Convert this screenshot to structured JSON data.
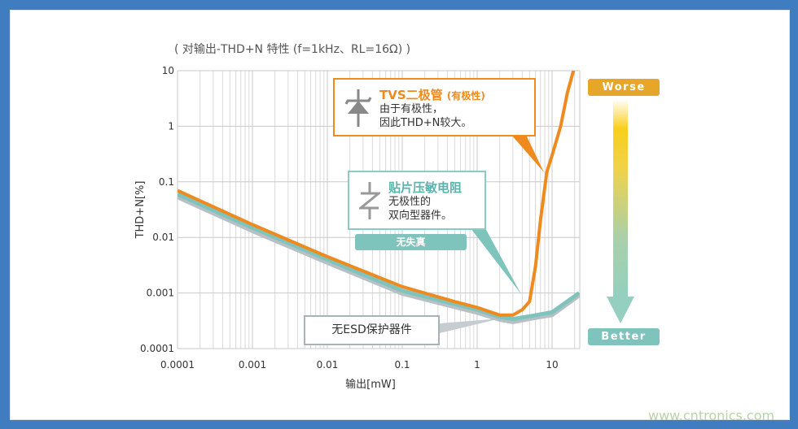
{
  "chart_data": {
    "type": "line",
    "title": "( 对输出-THD+N 特性 (f=1kHz、RL=16Ω) )",
    "xlabel": "输出[mW]",
    "ylabel": "THD+N[%]",
    "xscale": "log",
    "yscale": "log",
    "xlim": [
      0.0001,
      23
    ],
    "ylim": [
      0.0001,
      10
    ],
    "grid": true,
    "xticks": [
      "0.0001",
      "0.001",
      "0.01",
      "0.1",
      "1",
      "10"
    ],
    "yticks": [
      "10",
      "1",
      "0.1",
      "0.01",
      "0.001",
      "0.0001"
    ],
    "series": [
      {
        "name": "无ESD保护器件",
        "color": "#b8c0c6",
        "points": [
          [
            0.0001,
            0.053
          ],
          [
            0.001,
            0.013
          ],
          [
            0.01,
            0.0035
          ],
          [
            0.1,
            0.00097
          ],
          [
            1,
            0.00044
          ],
          [
            2,
            0.00033
          ],
          [
            3,
            0.0003
          ],
          [
            5,
            0.00034
          ],
          [
            10,
            0.0004
          ],
          [
            23,
            0.0009
          ]
        ]
      },
      {
        "name": "贴片压敏电阻",
        "color": "#7ec4bd",
        "points": [
          [
            0.0001,
            0.06
          ],
          [
            0.001,
            0.015
          ],
          [
            0.01,
            0.004
          ],
          [
            0.1,
            0.0011
          ],
          [
            1,
            0.0005
          ],
          [
            2,
            0.00037
          ],
          [
            3,
            0.00034
          ],
          [
            5,
            0.00038
          ],
          [
            10,
            0.00045
          ],
          [
            23,
            0.001
          ]
        ]
      },
      {
        "name": "TVS二极管",
        "color": "#ee8a1e",
        "points": [
          [
            0.0001,
            0.07
          ],
          [
            0.001,
            0.017
          ],
          [
            0.01,
            0.0045
          ],
          [
            0.1,
            0.0013
          ],
          [
            0.5,
            0.0007
          ],
          [
            1,
            0.00055
          ],
          [
            2,
            0.0004
          ],
          [
            3,
            0.0004
          ],
          [
            4,
            0.0005
          ],
          [
            5,
            0.0007
          ],
          [
            6,
            0.003
          ],
          [
            7,
            0.02
          ],
          [
            8.5,
            0.15
          ],
          [
            10,
            0.3
          ],
          [
            13,
            1
          ],
          [
            16,
            4
          ],
          [
            20,
            12
          ]
        ]
      }
    ]
  },
  "callouts": {
    "tvs": {
      "title": "TVS二极管",
      "title_suffix": "(有极性)",
      "line1": "由于有极性，",
      "line2": "因此THD+N较大。"
    },
    "varistor": {
      "title": "贴片压敏电阻",
      "line1": "无极性的",
      "line2": "双向型器件。"
    },
    "no_distortion": "无失真",
    "no_esd": "无ESD保护器件"
  },
  "scale": {
    "worse": "Worse",
    "better": "Better"
  },
  "watermark": "www.cntronics.com",
  "colors": {
    "frame": "#3f7dc0",
    "tvs": "#ee8a1e",
    "varistor": "#7ec4bd",
    "none": "#b8c0c6"
  }
}
